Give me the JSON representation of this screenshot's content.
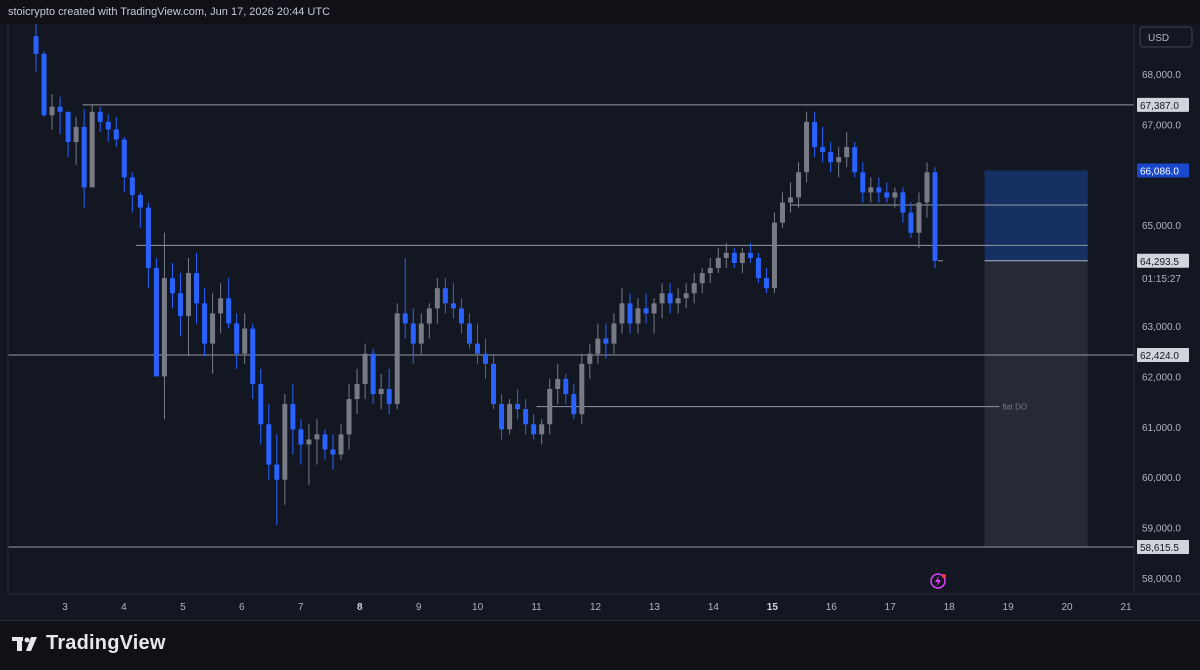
{
  "header": {
    "caption": "stoicrypto created with TradingView.com, Jun 17, 2026 20:44 UTC"
  },
  "footer": {
    "brand": "TradingView"
  },
  "chart_data": {
    "type": "candlestick",
    "currency": "USD",
    "ylim": [
      57500,
      69000
    ],
    "y_ticks": [
      "68,000.0",
      "67,000.0",
      "65,000.0",
      "63,000.0",
      "62,000.0",
      "61,000.0",
      "60,000.0",
      "59,000.0",
      "58,000.0"
    ],
    "x_ticks": [
      {
        "label": "3",
        "bold": false
      },
      {
        "label": "4",
        "bold": false
      },
      {
        "label": "5",
        "bold": false
      },
      {
        "label": "6",
        "bold": false
      },
      {
        "label": "7",
        "bold": false
      },
      {
        "label": "8",
        "bold": true
      },
      {
        "label": "9",
        "bold": false
      },
      {
        "label": "10",
        "bold": false
      },
      {
        "label": "11",
        "bold": false
      },
      {
        "label": "12",
        "bold": false
      },
      {
        "label": "13",
        "bold": false
      },
      {
        "label": "14",
        "bold": false
      },
      {
        "label": "15",
        "bold": true
      },
      {
        "label": "16",
        "bold": false
      },
      {
        "label": "17",
        "bold": false
      },
      {
        "label": "18",
        "bold": false
      },
      {
        "label": "19",
        "bold": false
      },
      {
        "label": "20",
        "bold": false
      },
      {
        "label": "21",
        "bold": false
      }
    ],
    "price_tags": [
      {
        "label": "67,387.0",
        "value": 67387,
        "style": "level"
      },
      {
        "label": "66,086.0",
        "value": 66086,
        "style": "target"
      },
      {
        "label": "64,293.5",
        "value": 64293.5,
        "style": "level"
      },
      {
        "label": "62,424.0",
        "value": 62424,
        "style": "level"
      },
      {
        "label": "58,615.5",
        "value": 58615.5,
        "style": "level"
      }
    ],
    "current_price_label": "64,293.5",
    "countdown": "01:15:27",
    "horizontal_levels": [
      {
        "price": 67387,
        "from_day": 3.3,
        "to": "axis"
      },
      {
        "price": 64600,
        "from_day": 4.2,
        "to": "box"
      },
      {
        "price": 65400,
        "from_day": 15.3,
        "to": "box"
      },
      {
        "price": 62424,
        "from_day": 2.0,
        "to": "axis"
      },
      {
        "price": 61400,
        "from_day": 11.0,
        "to": "label"
      },
      {
        "price": 58615.5,
        "from_day": 2.0,
        "to": "axis"
      }
    ],
    "annotations": [
      {
        "text": "flat DO",
        "price": 61400
      }
    ],
    "position_box": {
      "entry": 64293.5,
      "target": 66086,
      "stop": 58615.5,
      "from_day": 18.6,
      "to_day": 20.35
    },
    "candles_ohlc": [
      [
        68750,
        69000,
        68050,
        68400
      ],
      [
        68400,
        68450,
        67150,
        67180
      ],
      [
        67180,
        67600,
        66900,
        67350
      ],
      [
        67350,
        67550,
        66800,
        67250
      ],
      [
        67250,
        67250,
        66350,
        66650
      ],
      [
        66650,
        67150,
        66200,
        66950
      ],
      [
        66950,
        67300,
        65350,
        65750
      ],
      [
        65750,
        67400,
        65850,
        67250
      ],
      [
        67250,
        67350,
        66850,
        67050
      ],
      [
        67050,
        67200,
        66650,
        66900
      ],
      [
        66900,
        67150,
        66550,
        66700
      ],
      [
        66700,
        66750,
        65650,
        65950
      ],
      [
        65950,
        66050,
        65250,
        65600
      ],
      [
        65600,
        65650,
        64950,
        65350
      ],
      [
        65350,
        65450,
        63750,
        64150
      ],
      [
        64150,
        64350,
        62250,
        62000
      ],
      [
        62000,
        64850,
        61150,
        63950
      ],
      [
        63950,
        64250,
        63350,
        63650
      ],
      [
        63650,
        64050,
        62800,
        63200
      ],
      [
        63200,
        64350,
        62400,
        64050
      ],
      [
        64050,
        64450,
        63050,
        63450
      ],
      [
        63450,
        63750,
        62400,
        62650
      ],
      [
        62650,
        63650,
        62050,
        63250
      ],
      [
        63250,
        63850,
        62850,
        63550
      ],
      [
        63550,
        63950,
        62950,
        63050
      ],
      [
        63050,
        63250,
        62150,
        62450
      ],
      [
        62450,
        63250,
        62250,
        62950
      ],
      [
        62950,
        63050,
        61550,
        61850
      ],
      [
        61850,
        62150,
        60650,
        61050
      ],
      [
        61050,
        61450,
        59950,
        60250
      ],
      [
        60250,
        60850,
        59050,
        59950
      ],
      [
        59950,
        61650,
        59450,
        61450
      ],
      [
        61450,
        61850,
        60450,
        60950
      ],
      [
        60950,
        61150,
        60250,
        60650
      ],
      [
        60650,
        61050,
        59850,
        60750
      ],
      [
        60750,
        61150,
        60250,
        60850
      ],
      [
        60850,
        60950,
        60350,
        60550
      ],
      [
        60550,
        60850,
        60150,
        60450
      ],
      [
        60450,
        61050,
        60350,
        60850
      ],
      [
        60850,
        61850,
        60550,
        61550
      ],
      [
        61550,
        62150,
        61250,
        61850
      ],
      [
        61850,
        62650,
        61550,
        62450
      ],
      [
        62450,
        62550,
        61450,
        61650
      ],
      [
        61650,
        62050,
        61350,
        61750
      ],
      [
        61750,
        62150,
        61250,
        61450
      ],
      [
        61450,
        63450,
        61350,
        63250
      ],
      [
        63250,
        64350,
        62750,
        63050
      ],
      [
        63050,
        63350,
        62250,
        62650
      ],
      [
        62650,
        63250,
        62450,
        63050
      ],
      [
        63050,
        63450,
        62750,
        63350
      ],
      [
        63350,
        63950,
        63050,
        63750
      ],
      [
        63750,
        63950,
        63250,
        63450
      ],
      [
        63450,
        63850,
        63150,
        63350
      ],
      [
        63350,
        63550,
        62850,
        63050
      ],
      [
        63050,
        63250,
        62550,
        62650
      ],
      [
        62650,
        63050,
        62250,
        62450
      ],
      [
        62450,
        62750,
        61950,
        62250
      ],
      [
        62250,
        62450,
        61350,
        61450
      ],
      [
        61450,
        61650,
        60750,
        60950
      ],
      [
        60950,
        61550,
        60850,
        61450
      ],
      [
        61450,
        61750,
        61150,
        61350
      ],
      [
        61350,
        61550,
        60850,
        61050
      ],
      [
        61050,
        61250,
        60750,
        60850
      ],
      [
        60850,
        61150,
        60650,
        61050
      ],
      [
        61050,
        61950,
        60850,
        61750
      ],
      [
        61750,
        62250,
        61450,
        61950
      ],
      [
        61950,
        62050,
        61450,
        61650
      ],
      [
        61650,
        61850,
        61150,
        61250
      ],
      [
        61250,
        62450,
        61050,
        62250
      ],
      [
        62250,
        62650,
        61950,
        62450
      ],
      [
        62450,
        63050,
        62250,
        62750
      ],
      [
        62750,
        63050,
        62350,
        62650
      ],
      [
        62650,
        63250,
        62450,
        63050
      ],
      [
        63050,
        63750,
        62850,
        63450
      ],
      [
        63450,
        63650,
        62850,
        63050
      ],
      [
        63050,
        63550,
        62850,
        63350
      ],
      [
        63350,
        63650,
        63050,
        63250
      ],
      [
        63250,
        63550,
        62850,
        63450
      ],
      [
        63450,
        63850,
        63150,
        63650
      ],
      [
        63650,
        63850,
        63250,
        63450
      ],
      [
        63450,
        63750,
        63250,
        63550
      ],
      [
        63550,
        63850,
        63350,
        63650
      ],
      [
        63650,
        64050,
        63450,
        63850
      ],
      [
        63850,
        64150,
        63650,
        64050
      ],
      [
        64050,
        64350,
        63850,
        64150
      ],
      [
        64150,
        64550,
        64050,
        64350
      ],
      [
        64350,
        64650,
        64150,
        64450
      ],
      [
        64450,
        64550,
        64150,
        64250
      ],
      [
        64250,
        64550,
        64050,
        64450
      ],
      [
        64450,
        64650,
        64250,
        64350
      ],
      [
        64350,
        64450,
        63850,
        63950
      ],
      [
        63950,
        64150,
        63650,
        63750
      ],
      [
        63750,
        65250,
        63650,
        65050
      ],
      [
        65050,
        65650,
        64950,
        65450
      ],
      [
        65450,
        65850,
        65250,
        65550
      ],
      [
        65550,
        66250,
        65350,
        66050
      ],
      [
        66050,
        67250,
        65850,
        67050
      ],
      [
        67050,
        67250,
        66350,
        66550
      ],
      [
        66550,
        66950,
        66250,
        66450
      ],
      [
        66450,
        66650,
        66050,
        66250
      ],
      [
        66250,
        66550,
        65950,
        66350
      ],
      [
        66350,
        66850,
        66150,
        66550
      ],
      [
        66550,
        66650,
        65950,
        66050
      ],
      [
        66050,
        66250,
        65450,
        65650
      ],
      [
        65650,
        65950,
        65450,
        65750
      ],
      [
        65750,
        65950,
        65450,
        65650
      ],
      [
        65650,
        65850,
        65450,
        65550
      ],
      [
        65550,
        65750,
        65350,
        65650
      ],
      [
        65650,
        65750,
        65050,
        65250
      ],
      [
        65250,
        65450,
        64750,
        64850
      ],
      [
        64850,
        65650,
        64550,
        65450
      ],
      [
        65450,
        66250,
        65150,
        66050
      ],
      [
        66050,
        66150,
        64150,
        64293.5
      ]
    ]
  }
}
